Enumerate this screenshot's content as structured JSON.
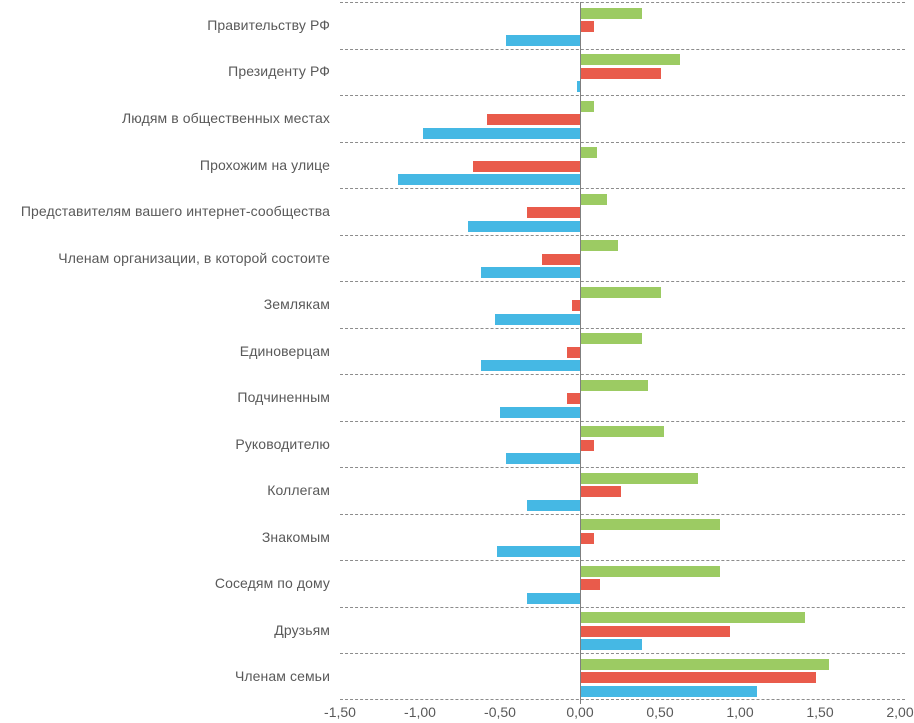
{
  "chart_data": {
    "type": "bar",
    "orientation": "horizontal",
    "title": "",
    "xlabel": "",
    "ylabel": "",
    "legend_position": "none",
    "grid": "dashed-horizontal-category-separators",
    "xlim": [
      -1.5,
      2.0
    ],
    "x_ticks": [
      -1.5,
      -1.0,
      -0.5,
      0.0,
      0.5,
      1.0,
      1.5,
      2.0
    ],
    "x_tick_labels": [
      "-1,50",
      "-1,00",
      "-0,50",
      "0,00",
      "0,50",
      "1,00",
      "1,50",
      "2,00"
    ],
    "categories": [
      "Правительству РФ",
      "Президенту РФ",
      "Людям в общественных местах",
      "Прохожим на улице",
      "Представителям вашего интернет-сообщества",
      "Членам организации, в которой состоите",
      "Землякам",
      "Единоверцам",
      "Подчиненным",
      "Руководителю",
      "Коллегам",
      "Знакомым",
      "Соседям по дому",
      "Друзьям",
      "Членам семьи"
    ],
    "series": [
      {
        "name": "series-green",
        "color": "#9CCB63",
        "values": [
          0.38,
          0.62,
          0.08,
          0.1,
          0.16,
          0.23,
          0.5,
          0.38,
          0.42,
          0.52,
          0.73,
          0.87,
          0.87,
          1.4,
          1.55
        ]
      },
      {
        "name": "series-red",
        "color": "#E95B4B",
        "values": [
          0.08,
          0.5,
          -0.58,
          -0.67,
          -0.33,
          -0.24,
          -0.05,
          -0.08,
          -0.08,
          0.08,
          0.25,
          0.08,
          0.12,
          0.93,
          1.47
        ]
      },
      {
        "name": "series-blue",
        "color": "#45B8E4",
        "values": [
          -0.46,
          -0.02,
          -0.98,
          -1.14,
          -0.7,
          -0.62,
          -0.53,
          -0.62,
          -0.5,
          -0.46,
          -0.33,
          -0.52,
          -0.33,
          0.38,
          1.1
        ]
      }
    ]
  },
  "style_colors": {
    "gridline": "#8c8c8c",
    "axis_line": "#7f7f7f",
    "text": "#595959",
    "background": "#ffffff"
  }
}
